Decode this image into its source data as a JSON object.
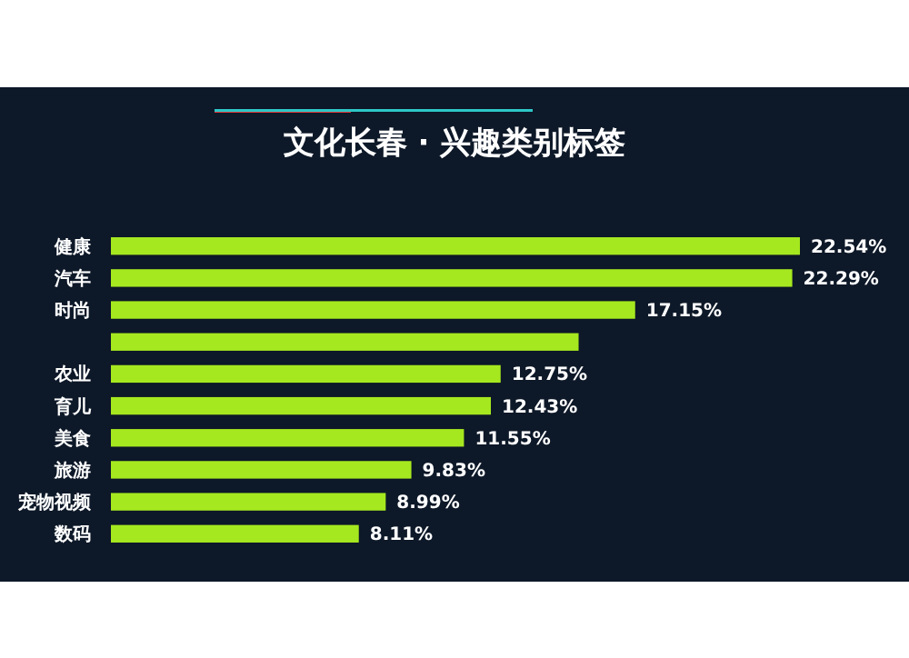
{
  "chart_data": {
    "type": "bar",
    "orientation": "horizontal",
    "title": "文化长春 · 兴趣类别标签",
    "categories": [
      "健康",
      "汽车",
      "时尚",
      null,
      "农业",
      "育儿",
      "美食",
      "旅游",
      "宠物视频",
      "数码"
    ],
    "values": [
      22.54,
      22.29,
      17.15,
      15.3,
      12.75,
      12.43,
      11.55,
      9.83,
      8.99,
      8.11
    ],
    "value_labels": [
      "22.54%",
      "22.29%",
      "17.15%",
      null,
      "12.75%",
      "12.43%",
      "11.55%",
      "9.83%",
      "8.99%",
      "8.11%"
    ],
    "color": "#a6e81f"
  }
}
